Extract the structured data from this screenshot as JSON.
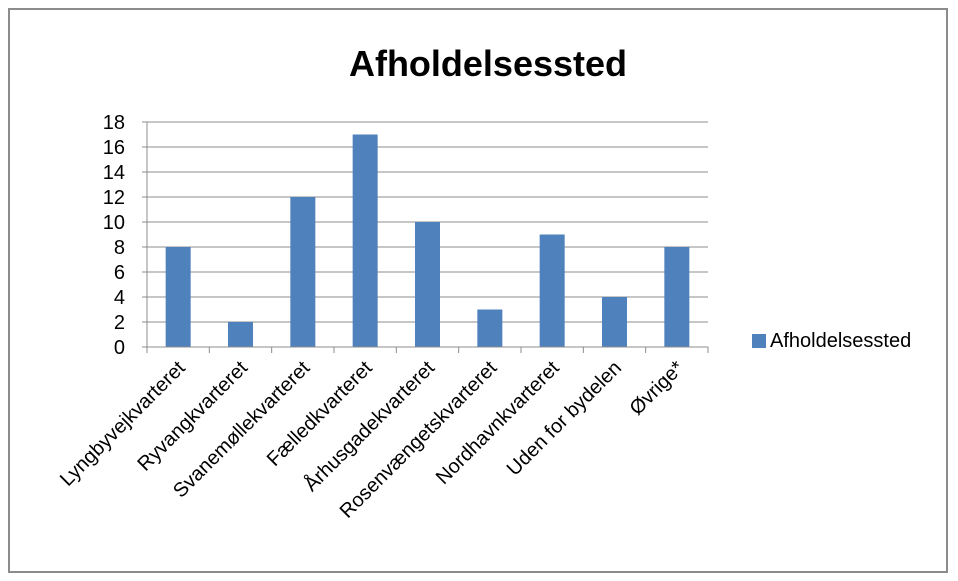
{
  "chart_data": {
    "type": "bar",
    "title": "Afholdelsessted",
    "xlabel": "",
    "ylabel": "",
    "categories": [
      "Lyngbyvejkvarteret",
      "Ryvangkvarteret",
      "Svanemøllekvarteret",
      "Fælledkvarteret",
      "Århusgadekvarteret",
      "Rosenvængetskvarteret",
      "Nordhavnkvarteret",
      "Uden for bydelen",
      "Øvrige*"
    ],
    "series": [
      {
        "name": "Afholdelsessted",
        "values": [
          8,
          2,
          12,
          17,
          10,
          3,
          9,
          4,
          8
        ],
        "color": "#4f81bd"
      }
    ],
    "ylim": [
      0,
      18
    ],
    "yticks": [
      0,
      2,
      4,
      6,
      8,
      10,
      12,
      14,
      16,
      18
    ],
    "grid": true,
    "legend_position": "right"
  }
}
